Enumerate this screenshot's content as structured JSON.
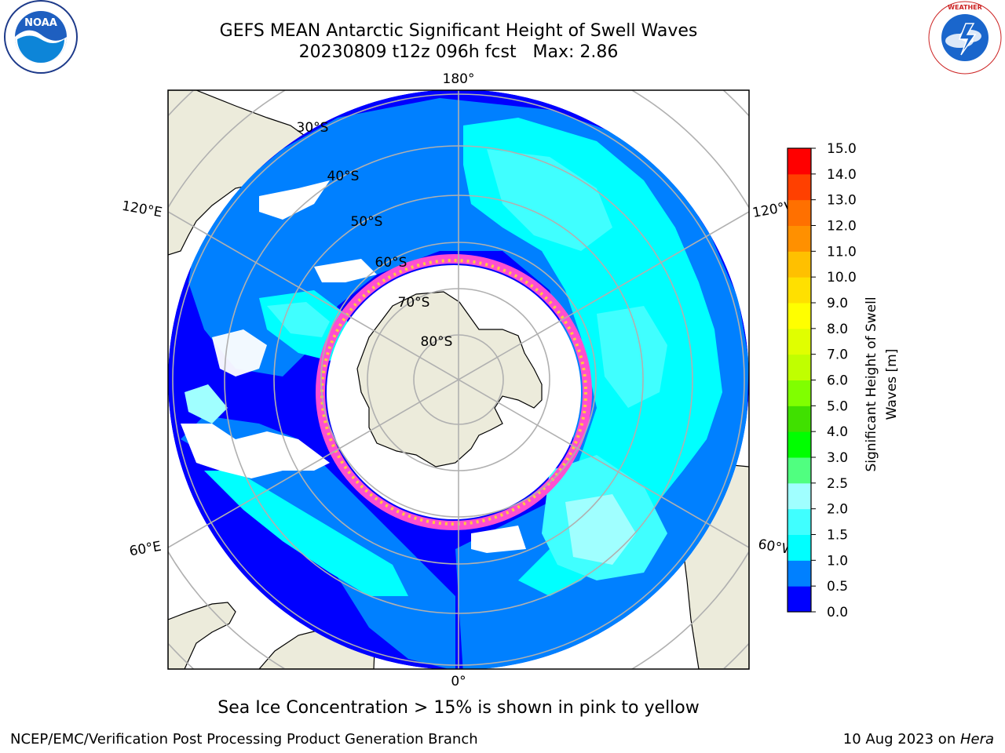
{
  "header": {
    "title_line1": "GEFS MEAN Antarctic Significant Height of Swell Waves",
    "title_line2": "20230809 t12z 096h fcst   Max: 2.86"
  },
  "logos": {
    "left": "noaa-logo",
    "right": "national-weather-service-logo",
    "left_text": "NOAA",
    "right_text": "NATIONAL WEATHER SERVICE"
  },
  "map": {
    "projection": "south-polar-stereographic",
    "longitude_labels": {
      "top": "180°",
      "bottom": "0°",
      "upper_left": "120°E",
      "lower_left": "60°E",
      "upper_right": "120°W",
      "lower_right": "60°W"
    },
    "latitude_labels": [
      "30°S",
      "40°S",
      "50°S",
      "60°S",
      "70°S",
      "80°S"
    ],
    "colors": {
      "land": "#ecebdb",
      "ice_free_ocean_none": "#ffffff",
      "grid": "#b0b0b0",
      "sea_ice_edge_pink": "#ff4fd0",
      "sea_ice_edge_yellow": "#ffc840"
    }
  },
  "colorbar": {
    "label_line1": "Significant Height of Swell",
    "label_line2": "Waves [m]",
    "ticks": [
      "0.0",
      "0.5",
      "1.0",
      "1.5",
      "2.0",
      "2.5",
      "3.0",
      "4.0",
      "5.0",
      "6.0",
      "7.0",
      "8.0",
      "9.0",
      "10.0",
      "11.0",
      "12.0",
      "13.0",
      "14.0",
      "15.0"
    ],
    "colors": [
      "#0000ff",
      "#0080ff",
      "#00ffff",
      "#40ffff",
      "#a0ffff",
      "#50ff80",
      "#00ff00",
      "#40e000",
      "#80ff00",
      "#c0ff00",
      "#e0ff00",
      "#ffff00",
      "#ffe000",
      "#ffc000",
      "#ff9000",
      "#ff7000",
      "#ff4000",
      "#ff0000"
    ]
  },
  "footer": {
    "note": "Sea Ice Concentration > 15% is shown in pink to yellow",
    "credit": "NCEP/EMC/Verification Post Processing Product Generation Branch",
    "date": "10 Aug 2023 on ",
    "host": "Hera"
  }
}
